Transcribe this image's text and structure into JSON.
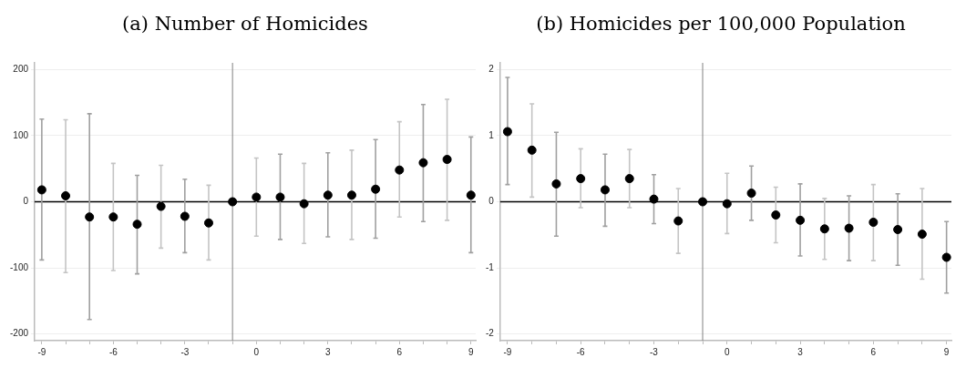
{
  "chart_data": [
    {
      "type": "scatter",
      "title": "(a) Number of Homicides",
      "marker": "circle",
      "grid": "y",
      "x": [
        -9,
        -8,
        -7,
        -6,
        -5,
        -4,
        -3,
        -2,
        -1,
        0,
        1,
        2,
        3,
        4,
        5,
        6,
        7,
        8,
        9
      ],
      "series": [
        {
          "color": "#000000",
          "values": [
            18,
            9,
            -23,
            -23,
            -34,
            -7,
            -22,
            -32,
            0,
            7,
            7,
            -3,
            10,
            10,
            19,
            48,
            59,
            64,
            10
          ],
          "errors": [
            [
              -88,
              125
            ],
            [
              -107,
              124
            ],
            [
              -178,
              133
            ],
            [
              -104,
              58
            ],
            [
              -109,
              40
            ],
            [
              -70,
              55
            ],
            [
              -77,
              34
            ],
            [
              -88,
              25
            ],
            null,
            [
              -52,
              66
            ],
            [
              -57,
              72
            ],
            [
              -63,
              58
            ],
            [
              -53,
              74
            ],
            [
              -57,
              78
            ],
            [
              -55,
              94
            ],
            [
              -23,
              121
            ],
            [
              -30,
              147
            ],
            [
              -28,
              155
            ],
            [
              -77,
              98
            ]
          ]
        }
      ],
      "xlim": [
        -9.3,
        9.2
      ],
      "xticks": [
        -9,
        {
          "value": -8,
          "label": null
        },
        {
          "value": -7,
          "label": null
        },
        -6,
        {
          "value": -5,
          "label": null
        },
        {
          "value": -4,
          "label": null
        },
        -3,
        {
          "value": -2,
          "label": null
        },
        {
          "value": -1,
          "label": null
        },
        0,
        {
          "value": 1,
          "label": null
        },
        {
          "value": 2,
          "label": null
        },
        3,
        {
          "value": 4,
          "label": null
        },
        {
          "value": 5,
          "label": null
        },
        6,
        {
          "value": 7,
          "label": null
        },
        {
          "value": 8,
          "label": null
        },
        9
      ],
      "ylim": [
        -210,
        210
      ],
      "yticks": [
        -200,
        -100,
        0,
        100,
        200
      ],
      "ref_lines": [
        {
          "axis": "y",
          "value": 0,
          "color": "#000000"
        },
        {
          "axis": "x",
          "value": -1,
          "color": "#808080"
        }
      ]
    },
    {
      "type": "scatter",
      "title": "(b) Homicides per 100,000 Population",
      "marker": "circle",
      "grid": "y",
      "x": [
        -9,
        -8,
        -7,
        -6,
        -5,
        -4,
        -3,
        -2,
        -1,
        0,
        1,
        2,
        3,
        4,
        5,
        6,
        7,
        8,
        9
      ],
      "series": [
        {
          "color": "#000000",
          "values": [
            1.06,
            0.78,
            0.27,
            0.35,
            0.18,
            0.35,
            0.04,
            -0.29,
            0,
            -0.03,
            0.13,
            -0.2,
            -0.28,
            -0.41,
            -0.4,
            -0.31,
            -0.42,
            -0.49,
            -0.84
          ],
          "errors": [
            [
              0.26,
              1.88
            ],
            [
              0.07,
              1.48
            ],
            [
              -0.52,
              1.05
            ],
            [
              -0.09,
              0.8
            ],
            [
              -0.37,
              0.72
            ],
            [
              -0.09,
              0.79
            ],
            [
              -0.33,
              0.41
            ],
            [
              -0.78,
              0.2
            ],
            null,
            [
              -0.48,
              0.43
            ],
            [
              -0.28,
              0.54
            ],
            [
              -0.62,
              0.22
            ],
            [
              -0.82,
              0.27
            ],
            [
              -0.87,
              0.05
            ],
            [
              -0.89,
              0.09
            ],
            [
              -0.89,
              0.26
            ],
            [
              -0.96,
              0.12
            ],
            [
              -1.17,
              0.2
            ],
            [
              -1.38,
              -0.3
            ]
          ]
        }
      ],
      "xlim": [
        -9.3,
        9.2
      ],
      "xticks": [
        -9,
        {
          "value": -8,
          "label": null
        },
        {
          "value": -7,
          "label": null
        },
        -6,
        {
          "value": -5,
          "label": null
        },
        {
          "value": -4,
          "label": null
        },
        -3,
        {
          "value": -2,
          "label": null
        },
        {
          "value": -1,
          "label": null
        },
        0,
        {
          "value": 1,
          "label": null
        },
        {
          "value": 2,
          "label": null
        },
        3,
        {
          "value": 4,
          "label": null
        },
        {
          "value": 5,
          "label": null
        },
        6,
        {
          "value": 7,
          "label": null
        },
        {
          "value": 8,
          "label": null
        },
        9
      ],
      "ylim": [
        -2.1,
        2.1
      ],
      "yticks": [
        -2,
        -1,
        0,
        1,
        2
      ],
      "ref_lines": [
        {
          "axis": "y",
          "value": 0,
          "color": "#000000"
        },
        {
          "axis": "x",
          "value": -1,
          "color": "#808080"
        }
      ]
    }
  ]
}
